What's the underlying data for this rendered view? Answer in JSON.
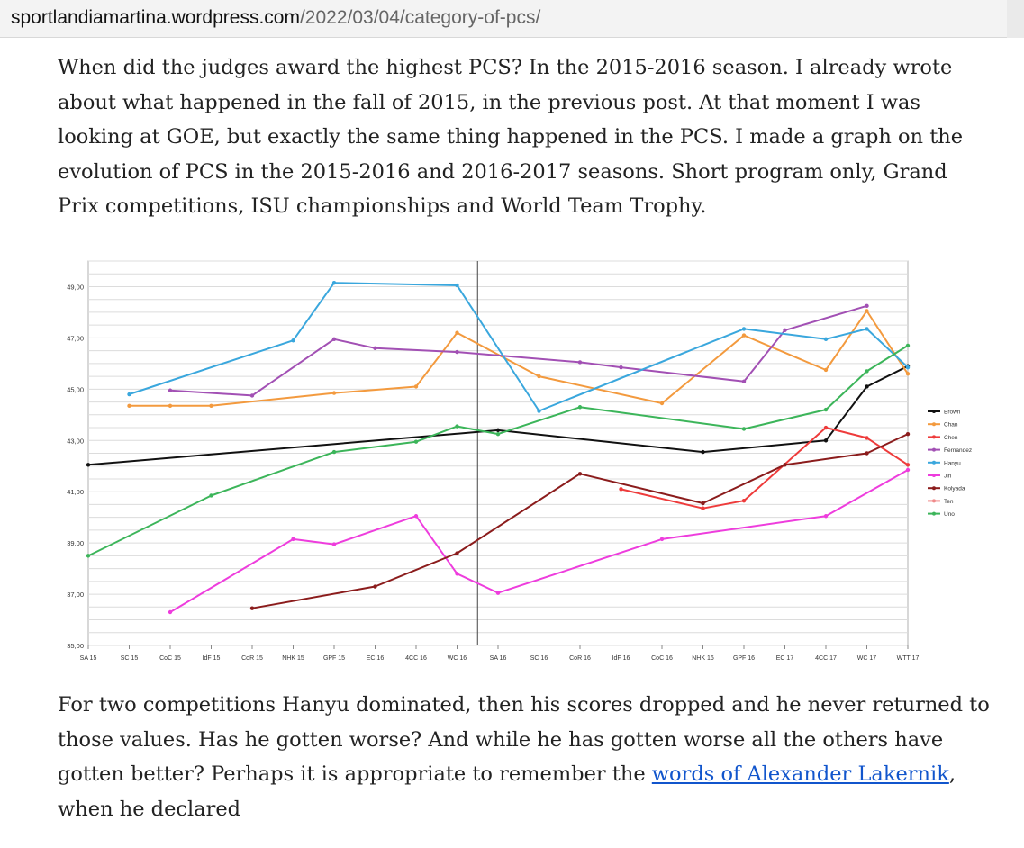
{
  "browser": {
    "url_host": "sportlandiamartina.wordpress.com",
    "url_path": "/2022/03/04/category-of-pcs/"
  },
  "article": {
    "paragraph1": "When did the judges award the highest PCS? In the 2015-2016 season. I already wrote about what happened in the fall of 2015, in the previous post. At that moment I was looking at GOE, but exactly the same thing happened in the PCS. I made a graph on the evolution of PCS in the 2015-2016 and 2016-2017 seasons. Short program only, Grand Prix competitions, ISU championships and World Team Trophy.",
    "paragraph2_before": "For two competitions Hanyu dominated, then his scores dropped and he never returned to those values. Has he gotten worse? And while he has gotten worse all the others have gotten better? Perhaps it is appropriate to remember the ",
    "paragraph2_link": "words of Alexander Lakernik",
    "paragraph2_after": ", when he declared"
  },
  "chart_data": {
    "type": "line",
    "categories": [
      "SA 15",
      "SC 15",
      "CoC 15",
      "IdF 15",
      "CoR 15",
      "NHK 15",
      "GPF 15",
      "EC 16",
      "4CC 16",
      "WC 16",
      "SA 16",
      "SC 16",
      "CoR 16",
      "IdF 16",
      "CoC 16",
      "NHK 16",
      "GPF 16",
      "EC 17",
      "4CC 17",
      "WC 17",
      "WTT 17"
    ],
    "ylim": [
      35,
      50
    ],
    "ytick_values": [
      35,
      37,
      39,
      41,
      43,
      45,
      47,
      49
    ],
    "ytick_labels": [
      "35,00",
      "37,00",
      "39,00",
      "41,00",
      "43,00",
      "45,00",
      "47,00",
      "49,00"
    ],
    "grid": true,
    "legend_position": "right",
    "season_divider_after": "WC 16",
    "series": [
      {
        "name": "Brown",
        "color": "#111111",
        "values": [
          42.05,
          null,
          null,
          null,
          null,
          null,
          null,
          null,
          null,
          null,
          43.4,
          null,
          null,
          null,
          null,
          42.55,
          null,
          null,
          43.0,
          45.1,
          45.9
        ]
      },
      {
        "name": "Chan",
        "color": "#f39a3e",
        "values": [
          null,
          44.35,
          44.35,
          44.35,
          null,
          null,
          44.85,
          null,
          45.1,
          47.2,
          null,
          45.5,
          null,
          null,
          44.45,
          null,
          47.1,
          null,
          45.75,
          48.05,
          45.6
        ]
      },
      {
        "name": "Chen",
        "color": "#ee3b3b",
        "values": [
          null,
          null,
          null,
          null,
          null,
          null,
          null,
          null,
          null,
          null,
          null,
          null,
          null,
          41.1,
          null,
          40.35,
          40.65,
          null,
          43.5,
          43.1,
          42.05
        ]
      },
      {
        "name": "Fernandez",
        "color": "#a250b4",
        "values": [
          null,
          null,
          44.95,
          null,
          44.75,
          null,
          46.95,
          46.6,
          null,
          46.45,
          null,
          null,
          46.05,
          45.85,
          null,
          null,
          45.3,
          47.3,
          null,
          48.25,
          null
        ]
      },
      {
        "name": "Hanyu",
        "color": "#3aa7dd",
        "values": [
          null,
          44.8,
          null,
          null,
          null,
          46.9,
          49.15,
          null,
          null,
          49.05,
          null,
          44.15,
          null,
          null,
          null,
          null,
          47.35,
          null,
          46.95,
          47.35,
          45.85
        ]
      },
      {
        "name": "Jin",
        "color": "#ee3ddd",
        "values": [
          null,
          null,
          36.3,
          null,
          null,
          39.15,
          38.95,
          null,
          40.05,
          37.8,
          37.05,
          null,
          null,
          null,
          39.15,
          null,
          null,
          null,
          40.05,
          null,
          41.85
        ]
      },
      {
        "name": "Kolyada",
        "color": "#8b1c1c",
        "values": [
          null,
          null,
          null,
          null,
          36.45,
          null,
          null,
          37.3,
          null,
          38.6,
          null,
          null,
          41.7,
          null,
          null,
          40.55,
          null,
          42.05,
          null,
          42.5,
          43.25
        ]
      },
      {
        "name": "Ten",
        "color": "#f08a8a",
        "values": [
          null,
          null,
          null,
          null,
          null,
          null,
          null,
          null,
          null,
          null,
          null,
          null,
          null,
          null,
          null,
          null,
          null,
          null,
          null,
          null,
          null
        ]
      },
      {
        "name": "Uno",
        "color": "#3cb55a",
        "values": [
          38.5,
          null,
          null,
          40.85,
          null,
          null,
          42.55,
          null,
          42.95,
          43.55,
          43.25,
          null,
          44.3,
          null,
          null,
          null,
          43.45,
          null,
          44.2,
          45.7,
          46.7
        ]
      }
    ]
  }
}
